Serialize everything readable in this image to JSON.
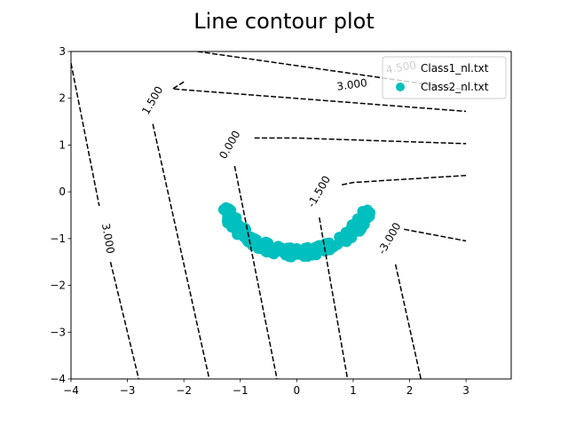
{
  "chart_data": {
    "type": "contour",
    "title": "Line contour plot",
    "xlabel": "",
    "ylabel": "",
    "xlim": [
      -4,
      3.8
    ],
    "ylim": [
      -4,
      3
    ],
    "xticks": [
      -4,
      -3,
      -2,
      -1,
      0,
      1,
      2,
      3
    ],
    "yticks": [
      -4,
      -3,
      -2,
      -1,
      0,
      1,
      2,
      3
    ],
    "grid": false,
    "legend": {
      "position": "top-right",
      "entries": [
        {
          "name": "Class1_nl.txt",
          "marker": "none"
        },
        {
          "name": "Class2_nl.txt",
          "marker": "circle",
          "color": "#00bfbf"
        }
      ]
    },
    "contour_color": "#000000",
    "contours": [
      {
        "level": "4.500",
        "label_at": [
          2.0,
          2.75
        ],
        "points": [
          [
            -1.76,
            3.0
          ],
          [
            3.0,
            2.18
          ]
        ]
      },
      {
        "level": "3.000",
        "label_at": [
          1.0,
          2.25
        ],
        "points": [
          [
            -2.0,
            2.35
          ],
          [
            -2.2,
            2.2
          ],
          [
            3.0,
            1.72
          ]
        ]
      },
      {
        "level": "1.500",
        "label_at": [
          -2.5,
          1.9
        ],
        "points": [
          [
            -2.55,
            1.45
          ],
          [
            -1.55,
            -4.0
          ]
        ]
      },
      {
        "level": "1.500",
        "label_at": [
          -2.5,
          1.9
        ],
        "points": [
          [
            -0.75,
            1.15
          ],
          [
            0.0,
            1.15
          ],
          [
            3.0,
            1.03
          ]
        ]
      },
      {
        "level": "0.000",
        "label_at": [
          -1.1,
          1.0
        ],
        "points": [
          [
            -1.1,
            0.55
          ],
          [
            -0.35,
            -4.0
          ]
        ]
      },
      {
        "level": "-1.500",
        "label_at": [
          0.4,
          0.0
        ],
        "points": [
          [
            0.4,
            -0.55
          ],
          [
            0.9,
            -4.0
          ]
        ]
      },
      {
        "level": "-1.500",
        "label_at": [
          0.4,
          0.0
        ],
        "points": [
          [
            0.8,
            0.15
          ],
          [
            1.0,
            0.2
          ],
          [
            3.0,
            0.35
          ]
        ]
      },
      {
        "level": "-3.000",
        "label_at": [
          1.6,
          -1.0
        ],
        "points": [
          [
            1.75,
            -1.55
          ],
          [
            2.2,
            -4.0
          ]
        ]
      },
      {
        "level": "-3.000",
        "label_at": [
          1.6,
          -1.0
        ],
        "points": [
          [
            1.9,
            -0.8
          ],
          [
            3.0,
            -1.05
          ]
        ]
      },
      {
        "level": "3.000",
        "label_at": [
          -3.35,
          -1.0
        ],
        "points": [
          [
            -4.0,
            2.75
          ],
          [
            -3.5,
            -0.3
          ]
        ]
      },
      {
        "level": "3.000",
        "label_at": [
          -3.35,
          -1.0
        ],
        "points": [
          [
            -3.3,
            -1.5
          ],
          [
            -2.8,
            -4.0
          ]
        ]
      }
    ],
    "contour_labels": [
      {
        "text": "4.500",
        "x": 1.85,
        "y": 2.65,
        "angle": -10
      },
      {
        "text": "3.000",
        "x": 0.98,
        "y": 2.28,
        "angle": -8
      },
      {
        "text": "1.500",
        "x": -2.55,
        "y": 1.95,
        "angle": -60
      },
      {
        "text": "0.000",
        "x": -1.18,
        "y": 1.0,
        "angle": -60
      },
      {
        "text": "-1.500",
        "x": 0.4,
        "y": 0.0,
        "angle": -60
      },
      {
        "text": "-3.000",
        "x": 1.65,
        "y": -1.0,
        "angle": -60
      },
      {
        "text": "3.000",
        "x": -3.35,
        "y": -1.0,
        "angle": 80
      }
    ],
    "series": [
      {
        "name": "Class2_nl.txt",
        "color": "#00bfbf",
        "arc": {
          "cx": 0.0,
          "cy": 0.0,
          "r": 1.3,
          "start_deg": 195,
          "end_deg": 347,
          "jitter": 0.1,
          "count": 200
        }
      }
    ]
  }
}
